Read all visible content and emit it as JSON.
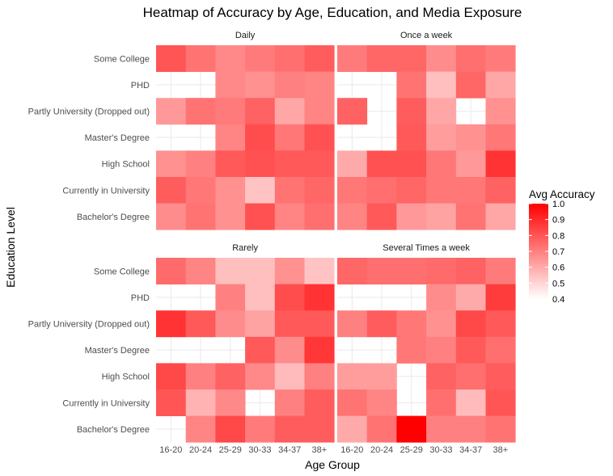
{
  "chart_data": {
    "type": "heatmap",
    "title": "Heatmap of Accuracy by Age, Education, and Media Exposure",
    "xlabel": "Age Group",
    "ylabel": "Education Level",
    "x_categories": [
      "16-20",
      "20-24",
      "25-29",
      "30-33",
      "34-37",
      "38+"
    ],
    "y_categories": [
      "Some College",
      "PHD",
      "Partly University (Dropped out)",
      "Master's Degree",
      "High School",
      "Currently in University",
      "Bachelor's Degree"
    ],
    "legend": {
      "title": "Avg Accuracy",
      "ticks": [
        "1.0",
        "0.9",
        "0.8",
        "0.7",
        "0.6",
        "0.5",
        "0.4"
      ],
      "range": [
        0.4,
        1.0
      ],
      "low_color": "#ffffff",
      "high_color": "#ff0000",
      "position": "right"
    },
    "panels": [
      {
        "name": "Daily",
        "values": [
          [
            0.8,
            0.73,
            0.68,
            0.71,
            0.74,
            0.78
          ],
          [
            null,
            null,
            0.68,
            0.66,
            0.7,
            0.69
          ],
          [
            0.64,
            0.73,
            0.71,
            0.77,
            0.61,
            0.69
          ],
          [
            null,
            null,
            0.69,
            0.82,
            0.72,
            0.81
          ],
          [
            0.66,
            0.7,
            0.79,
            0.81,
            0.79,
            0.79
          ],
          [
            0.78,
            0.72,
            0.66,
            0.54,
            0.73,
            0.76
          ],
          [
            0.67,
            0.73,
            0.66,
            0.81,
            0.69,
            0.74
          ]
        ]
      },
      {
        "name": "Once a week",
        "values": [
          [
            0.71,
            0.76,
            0.76,
            0.67,
            0.74,
            0.71
          ],
          [
            null,
            null,
            0.73,
            0.55,
            0.76,
            0.61
          ],
          [
            0.77,
            null,
            0.78,
            0.61,
            null,
            0.66
          ],
          [
            null,
            null,
            0.79,
            0.63,
            0.66,
            0.72
          ],
          [
            0.6,
            0.81,
            0.81,
            0.72,
            0.64,
            0.88
          ],
          [
            0.72,
            0.74,
            0.76,
            0.72,
            0.72,
            0.77
          ],
          [
            0.69,
            0.79,
            0.64,
            0.62,
            0.73,
            0.61
          ]
        ]
      },
      {
        "name": "Rarely",
        "values": [
          [
            0.75,
            0.69,
            0.55,
            0.55,
            0.66,
            0.54
          ],
          [
            null,
            null,
            0.7,
            0.55,
            0.82,
            0.88
          ],
          [
            0.88,
            0.79,
            0.67,
            0.62,
            0.79,
            0.79
          ],
          [
            null,
            null,
            null,
            0.79,
            0.67,
            0.87
          ],
          [
            0.83,
            0.7,
            0.77,
            0.68,
            0.56,
            0.7
          ],
          [
            0.8,
            0.58,
            0.68,
            null,
            0.7,
            0.78
          ],
          [
            null,
            0.69,
            0.83,
            0.71,
            0.78,
            0.78
          ]
        ]
      },
      {
        "name": "Several Times a week",
        "values": [
          [
            0.76,
            0.74,
            0.74,
            0.75,
            0.77,
            0.71
          ],
          [
            null,
            null,
            null,
            0.67,
            0.6,
            0.86
          ],
          [
            0.7,
            0.78,
            0.72,
            0.66,
            0.83,
            0.79
          ],
          [
            null,
            null,
            0.72,
            0.7,
            0.79,
            0.74
          ],
          [
            0.63,
            0.63,
            null,
            0.77,
            0.74,
            0.78
          ],
          [
            0.73,
            0.69,
            null,
            0.74,
            0.56,
            0.8
          ],
          [
            0.6,
            0.73,
            1.0,
            0.7,
            0.7,
            0.73
          ]
        ]
      }
    ]
  }
}
